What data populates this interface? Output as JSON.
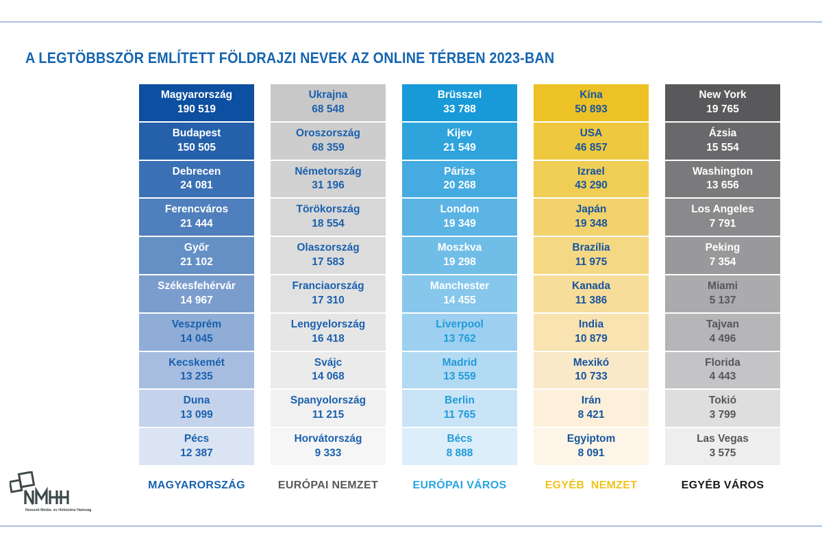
{
  "page": {
    "accent_line_color": "#a9c0d6",
    "background_color": "#ffffff",
    "title_color": "#1565b0"
  },
  "logo": {
    "wordmark": "NMHH",
    "tagline": "Nemzeti Média- és Hírközlési Hatóság",
    "color": "#3d4848"
  },
  "chart_data": {
    "type": "table",
    "title": "A LEGTÖBBSZÖR EMLÍTETT FÖLDRAJZI NEVEK AZ ONLINE TÉRBEN 2023-BAN",
    "subtitle": "",
    "legend_position": "bottom",
    "columns": [
      {
        "label": "MAGYARORSZÁG",
        "label_color": "#1863b0",
        "theme": "blue",
        "items": [
          {
            "name": "Magyarország",
            "value": "190 519"
          },
          {
            "name": "Budapest",
            "value": "150 505"
          },
          {
            "name": "Debrecen",
            "value": "24 081"
          },
          {
            "name": "Ferencváros",
            "value": "21 444"
          },
          {
            "name": "Győr",
            "value": "21 102"
          },
          {
            "name": "Székesfehérvár",
            "value": "14 967"
          },
          {
            "name": "Veszprém",
            "value": "14 045"
          },
          {
            "name": "Kecskemét",
            "value": "13 235"
          },
          {
            "name": "Duna",
            "value": "13 099"
          },
          {
            "name": "Pécs",
            "value": "12 387"
          }
        ],
        "cell_colors": [
          "#0d4fa0",
          "#2560aa",
          "#3a70b4",
          "#4f7fbc",
          "#6590c6",
          "#7b9dcd",
          "#8fadd7",
          "#a6bde0",
          "#c4d3eb",
          "#dbe4f3"
        ],
        "text_colors": [
          "#ffffff",
          "#ffffff",
          "#ffffff",
          "#ffffff",
          "#ffffff",
          "#ffffff",
          "#1a60ae",
          "#1a60ae",
          "#1a60ae",
          "#1a60ae"
        ]
      },
      {
        "label": "EURÓPAI NEMZET",
        "label_color": "#58595b",
        "theme": "light-gray",
        "items": [
          {
            "name": "Ukrajna",
            "value": "68 548"
          },
          {
            "name": "Oroszország",
            "value": "68 359"
          },
          {
            "name": "Németország",
            "value": "31 196"
          },
          {
            "name": "Törökország",
            "value": "18 554"
          },
          {
            "name": "Olaszország",
            "value": "17 583"
          },
          {
            "name": "Franciaország",
            "value": "17 310"
          },
          {
            "name": "Lengyelország",
            "value": "16 418"
          },
          {
            "name": "Svájc",
            "value": "14 068"
          },
          {
            "name": "Spanyolország",
            "value": "11 215"
          },
          {
            "name": "Horvátország",
            "value": "9 333"
          }
        ],
        "cell_colors": [
          "#c8c8c8",
          "#cdcdcd",
          "#d2d2d2",
          "#d7d7d7",
          "#dcdcdc",
          "#e1e1e1",
          "#e6e6e6",
          "#ebebeb",
          "#f1f1f1",
          "#f6f6f6"
        ],
        "text_colors": [
          "#1a60ae",
          "#1a60ae",
          "#1a60ae",
          "#1a60ae",
          "#1a60ae",
          "#1a60ae",
          "#1a60ae",
          "#1a60ae",
          "#1a60ae",
          "#1a60ae"
        ]
      },
      {
        "label": "EURÓPAI VÁROS",
        "label_color": "#29a4e0",
        "theme": "cyan",
        "items": [
          {
            "name": "Brüsszel",
            "value": "33 788"
          },
          {
            "name": "Kijev",
            "value": "21 549"
          },
          {
            "name": "Párizs",
            "value": "20 268"
          },
          {
            "name": "London",
            "value": "19 349"
          },
          {
            "name": "Moszkva",
            "value": "19 298"
          },
          {
            "name": "Manchester",
            "value": "14 455"
          },
          {
            "name": "Liverpool",
            "value": "13 762"
          },
          {
            "name": "Madrid",
            "value": "13 559"
          },
          {
            "name": "Berlin",
            "value": "11 765"
          },
          {
            "name": "Bécs",
            "value": "8 888"
          }
        ],
        "cell_colors": [
          "#189ad8",
          "#2ea3dc",
          "#45abe0",
          "#5bb4e4",
          "#70bde8",
          "#87c7ec",
          "#9dd0f0",
          "#b2daf3",
          "#c9e4f7",
          "#dceefa"
        ],
        "text_colors": [
          "#ffffff",
          "#ffffff",
          "#ffffff",
          "#ffffff",
          "#ffffff",
          "#ffffff",
          "#219bd9",
          "#219bd9",
          "#219bd9",
          "#219bd9"
        ]
      },
      {
        "label": "EGYÉB  NEMZET",
        "label_color": "#f0c31d",
        "theme": "gold",
        "items": [
          {
            "name": "Kína",
            "value": "50 893"
          },
          {
            "name": "USA",
            "value": "46 857"
          },
          {
            "name": "Izrael",
            "value": "43 290"
          },
          {
            "name": "Japán",
            "value": "19 348"
          },
          {
            "name": "Brazília",
            "value": "11 975"
          },
          {
            "name": "Kanada",
            "value": "11 386"
          },
          {
            "name": "India",
            "value": "10 879"
          },
          {
            "name": "Mexikó",
            "value": "10 733"
          },
          {
            "name": "Irán",
            "value": "8 421"
          },
          {
            "name": "Egyiptom",
            "value": "8 091"
          }
        ],
        "cell_colors": [
          "#ecc226",
          "#eec83e",
          "#f0cd55",
          "#f2d26d",
          "#f4d884",
          "#f6dd9a",
          "#f8e3b1",
          "#fae9c8",
          "#fcf0da",
          "#fdf6e8"
        ],
        "text_colors": [
          "#16549e",
          "#16549e",
          "#16549e",
          "#16549e",
          "#16549e",
          "#16549e",
          "#16549e",
          "#16549e",
          "#16549e",
          "#16549e"
        ]
      },
      {
        "label": "EGYÉB VÁROS",
        "label_color": "#1a1a1a",
        "theme": "dark-gray",
        "items": [
          {
            "name": "New York",
            "value": "19 765"
          },
          {
            "name": "Ázsia",
            "value": "15 554"
          },
          {
            "name": "Washington",
            "value": "13 656"
          },
          {
            "name": "Los Angeles",
            "value": "7 791"
          },
          {
            "name": "Peking",
            "value": "7 354"
          },
          {
            "name": "Miami",
            "value": "5 137"
          },
          {
            "name": "Tajvan",
            "value": "4 496"
          },
          {
            "name": "Florida",
            "value": "4 443"
          },
          {
            "name": "Tokió",
            "value": "3 799"
          },
          {
            "name": "Las Vegas",
            "value": "3 575"
          }
        ],
        "cell_colors": [
          "#59595b",
          "#69696b",
          "#7a7a7c",
          "#8a8a8c",
          "#99999b",
          "#ababad",
          "#b6b6b8",
          "#c4c4c6",
          "#dedede",
          "#eeeeee"
        ],
        "text_colors": [
          "#ffffff",
          "#ffffff",
          "#ffffff",
          "#ffffff",
          "#ffffff",
          "#57575a",
          "#57575a",
          "#57575a",
          "#57575a",
          "#57575a"
        ]
      }
    ]
  }
}
